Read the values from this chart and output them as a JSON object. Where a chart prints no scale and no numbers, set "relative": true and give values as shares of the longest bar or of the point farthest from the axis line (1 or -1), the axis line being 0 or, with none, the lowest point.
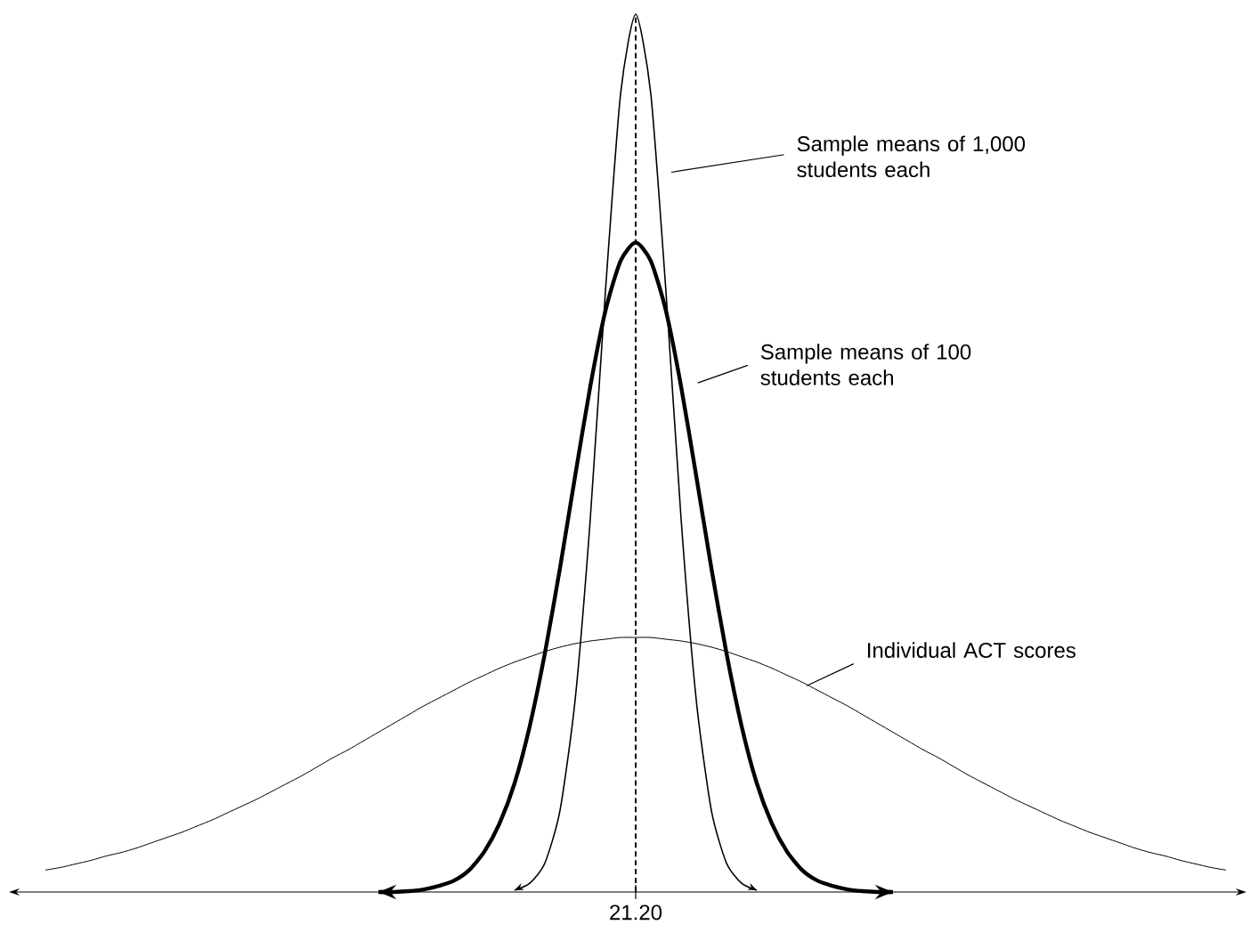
{
  "chart_data": {
    "type": "line",
    "relative": true,
    "categories": [
      null,
      null,
      null,
      null,
      null,
      null,
      null,
      null,
      null,
      null,
      null,
      null,
      null,
      null,
      null,
      null,
      null,
      null,
      null,
      null,
      null,
      null,
      null,
      null,
      null,
      null,
      null,
      null,
      null,
      null,
      null,
      null,
      null,
      null,
      null,
      null,
      null,
      null,
      null,
      null,
      null,
      null,
      null,
      null,
      null,
      null,
      null,
      null,
      null,
      null,
      null,
      null,
      null,
      null,
      null,
      null,
      null,
      null,
      null,
      null,
      null,
      null,
      null,
      null,
      null,
      null,
      null,
      null,
      null,
      null,
      null,
      null,
      null,
      null,
      null,
      null,
      null,
      null,
      null,
      null,
      null
    ],
    "series": [
      {
        "name": "Sample means of 1,000 students each",
        "color": "#000000",
        "values": [
          null,
          null,
          null,
          null,
          null,
          null,
          null,
          null,
          null,
          null,
          null,
          null,
          null,
          null,
          null,
          null,
          null,
          null,
          null,
          null,
          null,
          null,
          null,
          null,
          null,
          null,
          null,
          null,
          null,
          null,
          null,
          null,
          0.002,
          0.01,
          0.033,
          0.093,
          0.219,
          0.425,
          0.684,
          0.909,
          1,
          0.909,
          0.684,
          0.425,
          0.219,
          0.093,
          0.033,
          0.01,
          0.002,
          null,
          null,
          null,
          null,
          null,
          null,
          null,
          null,
          null,
          null,
          null,
          null,
          null,
          null,
          null,
          null,
          null,
          null,
          null,
          null,
          null,
          null,
          null,
          null,
          null,
          null,
          null,
          null,
          null,
          null,
          null,
          null
        ]
      },
      {
        "name": "Sample means of 100 students each",
        "color": "#000000",
        "values": [
          null,
          null,
          null,
          null,
          null,
          null,
          null,
          null,
          null,
          null,
          null,
          null,
          null,
          null,
          null,
          null,
          null,
          null,
          null,
          null,
          null,
          null,
          null,
          0,
          0,
          0.001,
          0.003,
          0.007,
          0.013,
          0.025,
          0.046,
          0.078,
          0.124,
          0.189,
          0.272,
          0.369,
          0.474,
          0.576,
          0.662,
          0.719,
          0.74,
          0.719,
          0.662,
          0.576,
          0.474,
          0.369,
          0.272,
          0.189,
          0.124,
          0.078,
          0.046,
          0.025,
          0.013,
          0.007,
          0.003,
          0.001,
          0,
          0,
          null,
          null,
          null,
          null,
          null,
          null,
          null,
          null,
          null,
          null,
          null,
          null,
          null,
          null,
          null,
          null,
          null,
          null,
          null,
          null,
          null,
          null,
          null
        ]
      },
      {
        "name": "Individual ACT scores",
        "color": "#000000",
        "values": [
          null,
          0.025,
          0.028,
          0.032,
          0.036,
          0.041,
          0.045,
          0.05,
          0.056,
          0.062,
          0.068,
          0.075,
          0.082,
          0.09,
          0.098,
          0.106,
          0.115,
          0.124,
          0.133,
          0.143,
          0.153,
          0.162,
          0.172,
          0.182,
          0.192,
          0.202,
          0.212,
          0.221,
          0.23,
          0.239,
          0.247,
          0.255,
          0.262,
          0.268,
          0.274,
          0.279,
          0.283,
          0.286,
          0.288,
          0.29,
          0.29,
          0.29,
          0.288,
          0.286,
          0.283,
          0.279,
          0.274,
          0.268,
          0.262,
          0.255,
          0.247,
          0.239,
          0.23,
          0.221,
          0.212,
          0.202,
          0.192,
          0.182,
          0.172,
          0.162,
          0.153,
          0.143,
          0.133,
          0.124,
          0.115,
          0.106,
          0.098,
          0.09,
          0.082,
          0.075,
          0.068,
          0.062,
          0.056,
          0.05,
          0.045,
          0.041,
          0.036,
          0.032,
          0.028,
          0.025,
          null
        ]
      }
    ],
    "annotations": [
      "21.20"
    ]
  }
}
